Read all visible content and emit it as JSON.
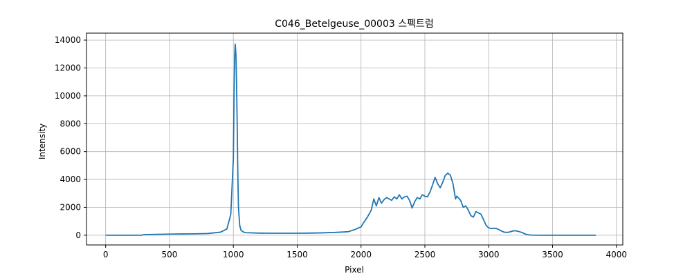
{
  "chart_data": {
    "type": "line",
    "title": "C046_Betelgeuse_00003 스펙트럼",
    "xlabel": "Pixel",
    "ylabel": "Intensity",
    "xlim": [
      -150,
      4050
    ],
    "ylim": [
      -700,
      14500
    ],
    "grid": true,
    "xticks": [
      0,
      500,
      1000,
      1500,
      2000,
      2500,
      3000,
      3500,
      4000
    ],
    "yticks": [
      0,
      2000,
      4000,
      6000,
      8000,
      10000,
      12000,
      14000
    ],
    "line_color": "#1f77b4",
    "series": [
      {
        "x": [
          0,
          100,
          200,
          280,
          300,
          400,
          500,
          600,
          700,
          800,
          900,
          950,
          980,
          1000,
          1005,
          1010,
          1015,
          1020,
          1025,
          1030,
          1035,
          1040,
          1050,
          1060,
          1080,
          1100,
          1200,
          1300,
          1400,
          1500,
          1600,
          1700,
          1800,
          1900,
          1950,
          2000,
          2020,
          2050,
          2080,
          2100,
          2120,
          2140,
          2160,
          2180,
          2200,
          2220,
          2240,
          2260,
          2280,
          2300,
          2320,
          2340,
          2360,
          2380,
          2400,
          2420,
          2440,
          2460,
          2480,
          2500,
          2520,
          2540,
          2560,
          2580,
          2600,
          2620,
          2640,
          2660,
          2680,
          2700,
          2720,
          2740,
          2750,
          2760,
          2780,
          2800,
          2820,
          2840,
          2860,
          2880,
          2900,
          2920,
          2940,
          2960,
          2980,
          3000,
          3020,
          3040,
          3060,
          3080,
          3100,
          3120,
          3140,
          3160,
          3180,
          3200,
          3220,
          3240,
          3260,
          3280,
          3300,
          3320,
          3340,
          3400,
          3500,
          3600,
          3700,
          3840
        ],
        "y": [
          0,
          0,
          0,
          0,
          40,
          60,
          80,
          90,
          100,
          120,
          220,
          450,
          1500,
          5500,
          9500,
          12800,
          13700,
          13000,
          11000,
          8000,
          4500,
          2000,
          700,
          350,
          220,
          180,
          150,
          140,
          140,
          140,
          150,
          170,
          200,
          250,
          400,
          600,
          900,
          1300,
          1800,
          2600,
          2100,
          2700,
          2300,
          2550,
          2700,
          2600,
          2500,
          2750,
          2600,
          2900,
          2600,
          2750,
          2800,
          2500,
          1950,
          2400,
          2700,
          2600,
          2900,
          2800,
          2750,
          3100,
          3600,
          4150,
          3700,
          3400,
          3800,
          4300,
          4450,
          4300,
          3700,
          2600,
          2800,
          2700,
          2500,
          2000,
          2100,
          1800,
          1400,
          1300,
          1700,
          1600,
          1500,
          1100,
          700,
          520,
          480,
          500,
          480,
          400,
          300,
          220,
          200,
          220,
          280,
          320,
          300,
          250,
          200,
          100,
          50,
          20,
          5,
          0,
          0,
          0,
          0,
          0
        ]
      }
    ]
  }
}
